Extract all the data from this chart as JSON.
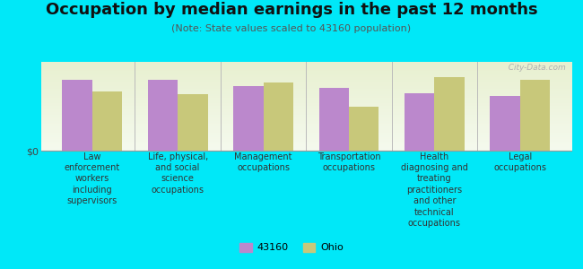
{
  "title": "Occupation by median earnings in the past 12 months",
  "subtitle": "(Note: State values scaled to 43160 population)",
  "background_outer": "#00e8f8",
  "categories": [
    "Law\nenforcement\nworkers\nincluding\nsupervisors",
    "Life, physical,\nand social\nscience\noccupations",
    "Management\noccupations",
    "Transportation\noccupations",
    "Health\ndiagnosing and\ntreating\npractitioners\nand other\ntechnical\noccupations",
    "Legal\noccupations"
  ],
  "series1_values": [
    0.68,
    0.68,
    0.62,
    0.6,
    0.55,
    0.52
  ],
  "series2_values": [
    0.57,
    0.54,
    0.65,
    0.42,
    0.7,
    0.68
  ],
  "series1_color": "#bb88cc",
  "series2_color": "#c8c87a",
  "series1_label": "43160",
  "series2_label": "Ohio",
  "bar_width": 0.35,
  "ylabel": "$0",
  "watermark": "  City-Data.com",
  "title_fontsize": 13,
  "subtitle_fontsize": 8,
  "tick_fontsize": 7,
  "legend_fontsize": 8,
  "ylim": [
    0,
    0.85
  ]
}
